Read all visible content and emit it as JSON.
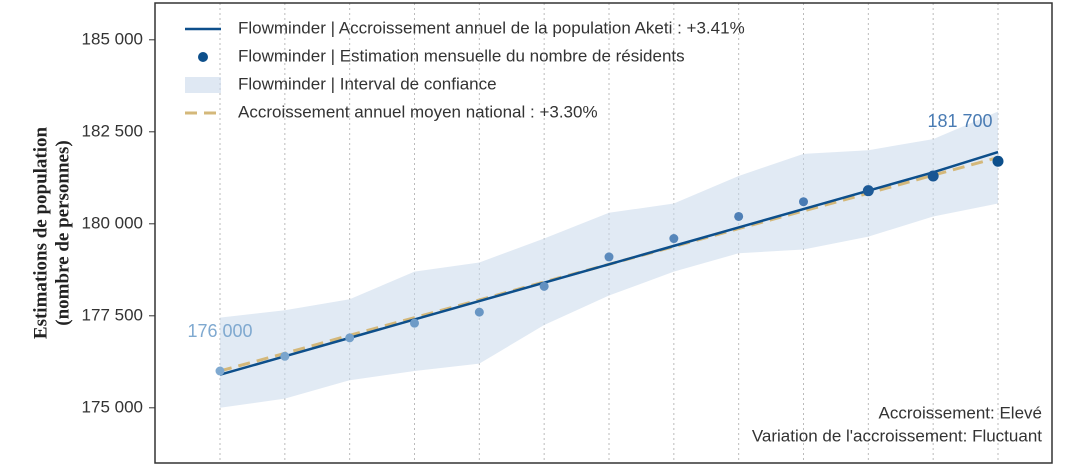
{
  "chart_data": {
    "type": "line",
    "y_label": [
      "Estimations de population",
      "(nombre de personnes)"
    ],
    "categories": [
      null,
      null,
      null,
      null,
      null,
      null,
      null,
      null,
      null,
      null,
      null,
      null,
      null
    ],
    "ylim": [
      173500,
      186000
    ],
    "yticks": [
      {
        "value": 175000,
        "label": "175 000"
      },
      {
        "value": 177500,
        "label": "177 500"
      },
      {
        "value": 180000,
        "label": "180 000"
      },
      {
        "value": 182500,
        "label": "182 500"
      },
      {
        "value": 185000,
        "label": "185 000"
      }
    ],
    "grid": true,
    "legend": "top-left",
    "series": [
      {
        "name": "Flowminder | Accroissement annuel de la population Aketi : +3.41%",
        "type": "line",
        "color": "#0d4f8b",
        "values": [
          175900,
          176400,
          176900,
          177400,
          177900,
          178400,
          178900,
          179400,
          179900,
          180400,
          180900,
          181400,
          181950
        ]
      },
      {
        "name": "Flowminder | Estimation mensuelle du nombre de résidents",
        "type": "scatter",
        "color": "#0d4f8b",
        "point_colors": [
          "#7fa9d0",
          "#7aa5cd",
          "#74a0ca",
          "#6e9bc7",
          "#6896c4",
          "#6290c0",
          "#5c8bbd",
          "#5686ba",
          "#4f80b6",
          "#497bb3",
          "#1d5a97",
          "#175593",
          "#0d4f8b"
        ],
        "values": [
          176000,
          176400,
          176900,
          177300,
          177600,
          178300,
          179100,
          179600,
          180200,
          180600,
          180900,
          181300,
          181700
        ],
        "value_labels": [
          "176 000",
          null,
          null,
          null,
          null,
          null,
          null,
          null,
          null,
          null,
          null,
          null,
          "181 700"
        ]
      },
      {
        "name": "Flowminder | Interval de confiance",
        "type": "band",
        "color": "#c9d9eb",
        "upper": [
          177450,
          177650,
          177950,
          178700,
          178950,
          179600,
          180300,
          180550,
          181300,
          181900,
          182000,
          182300,
          183050
        ],
        "lower": [
          175000,
          175250,
          175750,
          176000,
          176200,
          177250,
          178050,
          178700,
          179200,
          179300,
          179650,
          180200,
          180550
        ]
      },
      {
        "name": "Accroissement annuel moyen national : +3.30%",
        "type": "line",
        "dash": true,
        "color": "#d4b87a",
        "values": [
          176000,
          176480,
          176970,
          177450,
          177930,
          178420,
          178900,
          179380,
          179870,
          180350,
          180830,
          181320,
          181800
        ]
      }
    ],
    "annotations": [
      "Accroissement: Elevé",
      "Variation de l'accroissement: Fluctuant"
    ]
  }
}
